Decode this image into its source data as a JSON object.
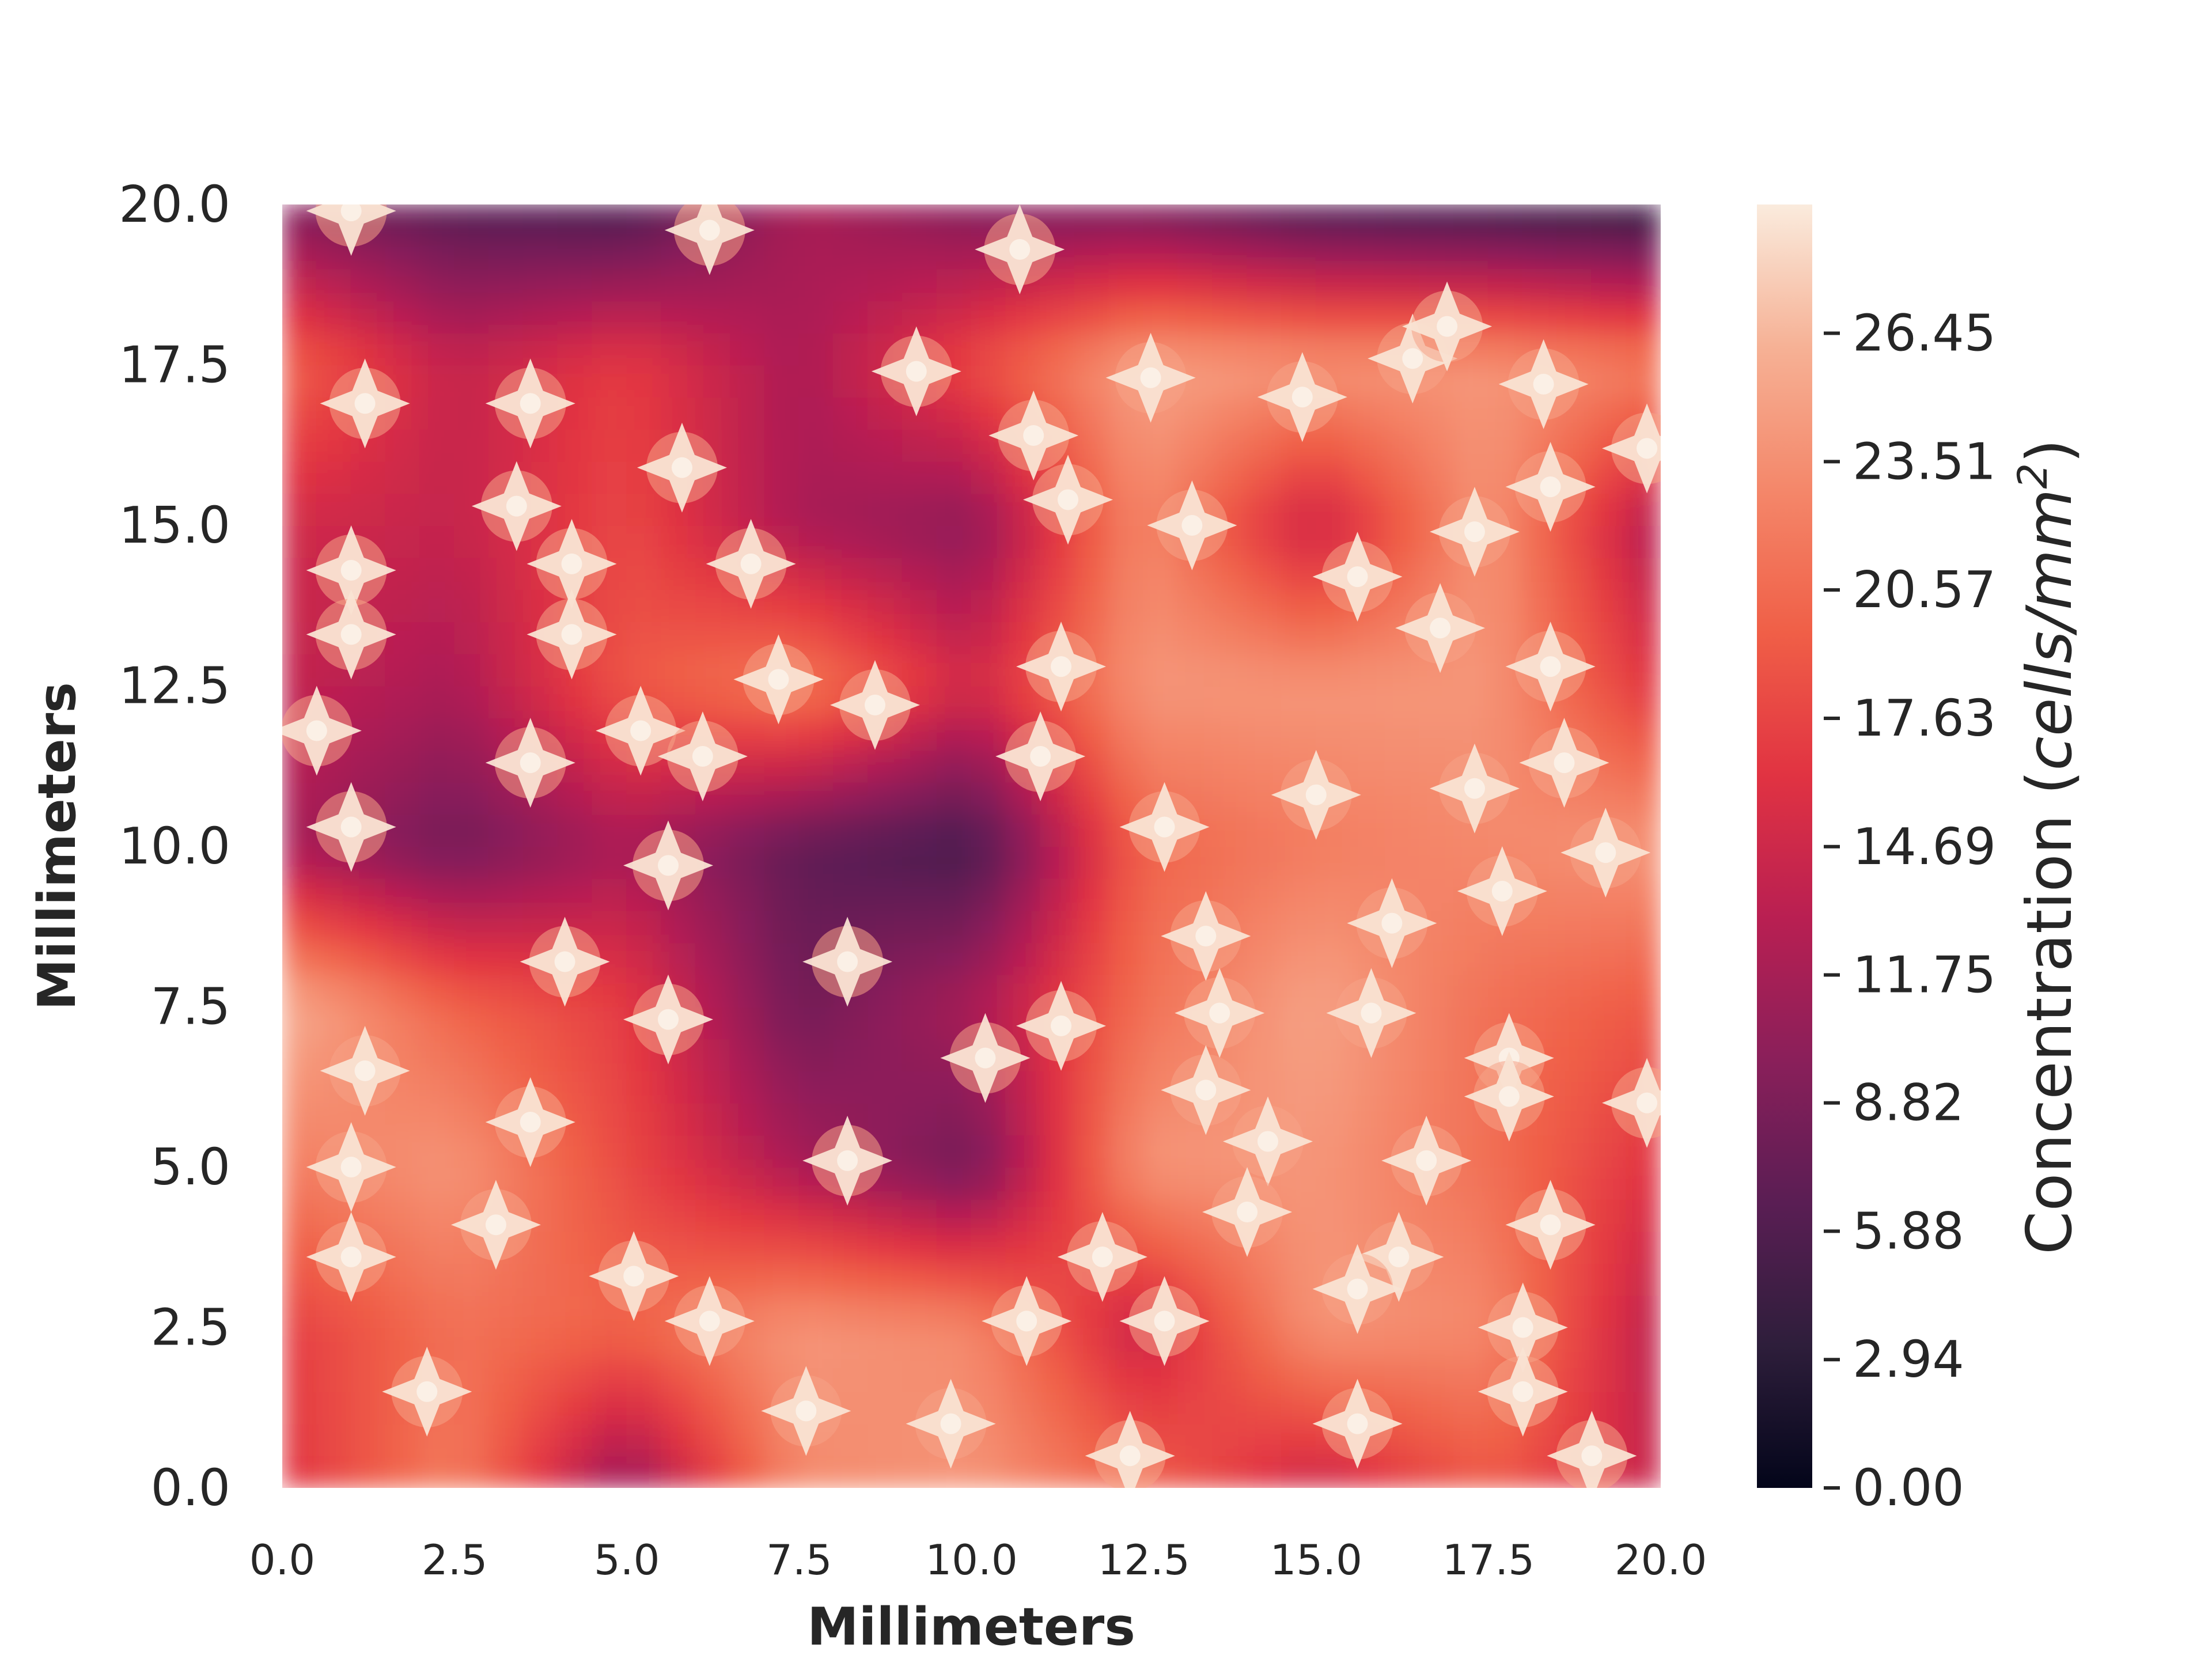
{
  "chart_data": {
    "type": "heatmap",
    "subtype": "filled-contour",
    "title": "",
    "xlabel": "Millimeters",
    "ylabel": "Millimeters",
    "xlim": [
      0,
      20
    ],
    "ylim": [
      0,
      20
    ],
    "x_ticks": [
      0.0,
      2.5,
      5.0,
      7.5,
      10.0,
      12.5,
      15.0,
      17.5,
      20.0
    ],
    "x_tick_labels": [
      "0.0",
      "2.5",
      "5.0",
      "7.5",
      "10.0",
      "12.5",
      "15.0",
      "17.5",
      "20.0"
    ],
    "y_ticks": [
      0.0,
      2.5,
      5.0,
      7.5,
      10.0,
      12.5,
      15.0,
      17.5,
      20.0
    ],
    "y_tick_labels": [
      "0.0",
      "2.5",
      "5.0",
      "7.5",
      "10.0",
      "12.5",
      "15.0",
      "17.5",
      "20.0"
    ],
    "colorbar": {
      "label_prefix": "Concentration (",
      "label_units": "cells/mm",
      "label_exponent": "2",
      "label_suffix": ")",
      "vmin": 0.0,
      "vmax": 29.4,
      "ticks": [
        0.0,
        2.94,
        5.88,
        8.82,
        11.75,
        14.69,
        17.63,
        20.57,
        23.51,
        26.45
      ],
      "tick_labels": [
        "0.00",
        "2.94",
        "5.88",
        "8.82",
        "11.75",
        "14.69",
        "17.63",
        "20.57",
        "23.51",
        "26.45"
      ],
      "colormap": "rocket",
      "colormap_stops": [
        "#03051a",
        "#2e1e3b",
        "#5a1e54",
        "#8a1f5a",
        "#b91f52",
        "#e13342",
        "#f05f47",
        "#f4876a",
        "#f6b195",
        "#faebdd"
      ]
    },
    "grid": {
      "x": [
        0,
        2.5,
        5,
        7.5,
        10,
        12.5,
        15,
        17.5,
        20
      ],
      "y": [
        0,
        2.5,
        5,
        7.5,
        10,
        12.5,
        15,
        17.5,
        20
      ],
      "z": [
        [
          16.0,
          22.0,
          10.0,
          23.0,
          24.0,
          20.0,
          14.0,
          19.0,
          14.0
        ],
        [
          17.0,
          21.0,
          20.0,
          24.0,
          23.0,
          14.0,
          24.0,
          23.0,
          13.0
        ],
        [
          22.0,
          24.0,
          18.0,
          12.0,
          8.0,
          24.0,
          24.0,
          21.0,
          16.0
        ],
        [
          26.0,
          20.0,
          17.0,
          8.0,
          12.0,
          21.0,
          25.0,
          21.0,
          19.0
        ],
        [
          12.0,
          8.0,
          12.0,
          7.0,
          5.0,
          20.0,
          22.0,
          23.0,
          24.0
        ],
        [
          14.0,
          12.0,
          19.0,
          22.0,
          15.0,
          24.0,
          24.0,
          24.0,
          16.0
        ],
        [
          15.0,
          14.0,
          18.0,
          12.0,
          10.0,
          23.0,
          14.0,
          24.0,
          12.0
        ],
        [
          20.0,
          14.0,
          17.0,
          12.0,
          18.0,
          25.0,
          24.0,
          24.0,
          22.0
        ],
        [
          9.0,
          6.0,
          5.0,
          12.0,
          9.0,
          8.0,
          5.0,
          4.0,
          3.0
        ]
      ]
    },
    "hotspots": [
      [
        1.0,
        19.9
      ],
      [
        6.2,
        19.6
      ],
      [
        10.7,
        19.3
      ],
      [
        1.2,
        16.9
      ],
      [
        3.6,
        16.9
      ],
      [
        9.2,
        17.4
      ],
      [
        5.8,
        15.9
      ],
      [
        3.4,
        15.3
      ],
      [
        4.2,
        14.4
      ],
      [
        6.8,
        14.4
      ],
      [
        1.0,
        14.3
      ],
      [
        1.0,
        13.3
      ],
      [
        4.2,
        13.3
      ],
      [
        7.2,
        12.6
      ],
      [
        8.6,
        12.2
      ],
      [
        5.2,
        11.8
      ],
      [
        0.5,
        11.8
      ],
      [
        6.1,
        11.4
      ],
      [
        3.6,
        11.3
      ],
      [
        1.0,
        10.3
      ],
      [
        5.6,
        9.7
      ],
      [
        4.1,
        8.2
      ],
      [
        8.2,
        8.2
      ],
      [
        5.6,
        7.3
      ],
      [
        10.2,
        6.7
      ],
      [
        11.3,
        7.2
      ],
      [
        1.2,
        6.5
      ],
      [
        3.6,
        5.7
      ],
      [
        8.2,
        5.1
      ],
      [
        1.0,
        5.0
      ],
      [
        1.0,
        3.6
      ],
      [
        3.1,
        4.1
      ],
      [
        5.1,
        3.3
      ],
      [
        2.1,
        1.5
      ],
      [
        6.2,
        2.6
      ],
      [
        7.6,
        1.2
      ],
      [
        9.7,
        1.0
      ],
      [
        10.8,
        2.6
      ],
      [
        11.9,
        3.6
      ],
      [
        12.8,
        2.6
      ],
      [
        12.3,
        0.5
      ],
      [
        10.9,
        16.4
      ],
      [
        11.4,
        15.4
      ],
      [
        12.6,
        17.3
      ],
      [
        13.2,
        15.0
      ],
      [
        14.8,
        17.0
      ],
      [
        16.4,
        17.6
      ],
      [
        16.9,
        18.1
      ],
      [
        18.3,
        17.2
      ],
      [
        18.4,
        15.6
      ],
      [
        15.6,
        14.2
      ],
      [
        17.3,
        14.9
      ],
      [
        16.8,
        13.4
      ],
      [
        18.4,
        12.8
      ],
      [
        11.3,
        12.8
      ],
      [
        11.0,
        11.4
      ],
      [
        12.8,
        10.3
      ],
      [
        15.0,
        10.8
      ],
      [
        17.3,
        10.9
      ],
      [
        18.6,
        11.3
      ],
      [
        19.2,
        9.9
      ],
      [
        17.7,
        9.3
      ],
      [
        16.1,
        8.8
      ],
      [
        13.4,
        8.6
      ],
      [
        13.6,
        7.4
      ],
      [
        13.4,
        6.2
      ],
      [
        14.3,
        5.4
      ],
      [
        15.8,
        7.4
      ],
      [
        17.8,
        6.7
      ],
      [
        17.8,
        6.1
      ],
      [
        16.6,
        5.1
      ],
      [
        16.2,
        3.6
      ],
      [
        18.4,
        4.1
      ],
      [
        15.6,
        3.1
      ],
      [
        18.0,
        2.5
      ],
      [
        18.0,
        1.5
      ],
      [
        15.6,
        1.0
      ],
      [
        19.0,
        0.5
      ],
      [
        14.0,
        4.3
      ],
      [
        19.8,
        16.2
      ],
      [
        19.8,
        6.0
      ]
    ]
  }
}
